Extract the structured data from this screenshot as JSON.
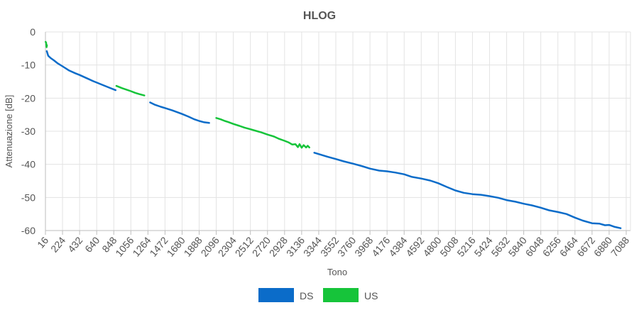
{
  "chart_data": {
    "type": "line",
    "title": "HLOG",
    "xlabel": "Tono",
    "ylabel": "Attenuazione [dB]",
    "xlim": [
      16,
      7140
    ],
    "ylim": [
      -60,
      0
    ],
    "grid": true,
    "legend_position": "bottom",
    "x_tick_labels": [
      "16",
      "224",
      "432",
      "640",
      "848",
      "1056",
      "1264",
      "1472",
      "1680",
      "1888",
      "2096",
      "2304",
      "2512",
      "2720",
      "2928",
      "3136",
      "3344",
      "3552",
      "3760",
      "3968",
      "4176",
      "4384",
      "4592",
      "4800",
      "5008",
      "5216",
      "5424",
      "5632",
      "5840",
      "6048",
      "6256",
      "6464",
      "6672",
      "6880",
      "7088"
    ],
    "y_tick_labels": [
      "0",
      "-10",
      "-20",
      "-30",
      "-40",
      "-50",
      "-60"
    ],
    "y_ticks": [
      0,
      -10,
      -20,
      -30,
      -40,
      -50,
      -60
    ],
    "series": [
      {
        "name": "DS",
        "color": "#0b6cc9",
        "segments": [
          [
            [
              32,
              -5.8
            ],
            [
              50,
              -7.2
            ],
            [
              80,
              -7.9
            ],
            [
              120,
              -8.6
            ],
            [
              160,
              -9.4
            ],
            [
              224,
              -10.4
            ],
            [
              300,
              -11.6
            ],
            [
              380,
              -12.5
            ],
            [
              432,
              -13.0
            ],
            [
              520,
              -14.0
            ],
            [
              600,
              -14.9
            ],
            [
              640,
              -15.3
            ],
            [
              720,
              -16.1
            ],
            [
              800,
              -16.9
            ],
            [
              870,
              -17.6
            ]
          ],
          [
            [
              1290,
              -21.3
            ],
            [
              1350,
              -22.0
            ],
            [
              1420,
              -22.6
            ],
            [
              1472,
              -23.0
            ],
            [
              1560,
              -23.7
            ],
            [
              1640,
              -24.4
            ],
            [
              1680,
              -24.8
            ],
            [
              1760,
              -25.6
            ],
            [
              1830,
              -26.4
            ],
            [
              1888,
              -26.9
            ],
            [
              1950,
              -27.3
            ],
            [
              2010,
              -27.5
            ]
          ],
          [
            [
              3290,
              -36.5
            ],
            [
              3344,
              -36.9
            ],
            [
              3450,
              -37.7
            ],
            [
              3552,
              -38.4
            ],
            [
              3650,
              -39.1
            ],
            [
              3760,
              -39.8
            ],
            [
              3880,
              -40.6
            ],
            [
              3968,
              -41.3
            ],
            [
              4080,
              -41.9
            ],
            [
              4176,
              -42.1
            ],
            [
              4280,
              -42.5
            ],
            [
              4384,
              -43.0
            ],
            [
              4480,
              -43.8
            ],
            [
              4592,
              -44.3
            ],
            [
              4700,
              -44.9
            ],
            [
              4800,
              -45.7
            ],
            [
              4900,
              -46.8
            ],
            [
              5008,
              -47.9
            ],
            [
              5110,
              -48.6
            ],
            [
              5216,
              -49.0
            ],
            [
              5320,
              -49.2
            ],
            [
              5424,
              -49.6
            ],
            [
              5530,
              -50.1
            ],
            [
              5632,
              -50.8
            ],
            [
              5740,
              -51.3
            ],
            [
              5840,
              -51.9
            ],
            [
              5940,
              -52.4
            ],
            [
              6048,
              -53.1
            ],
            [
              6150,
              -53.9
            ],
            [
              6256,
              -54.4
            ],
            [
              6360,
              -55.0
            ],
            [
              6464,
              -56.1
            ],
            [
              6560,
              -57.0
            ],
            [
              6672,
              -57.8
            ],
            [
              6760,
              -57.9
            ],
            [
              6830,
              -58.4
            ],
            [
              6880,
              -58.3
            ],
            [
              6950,
              -58.9
            ],
            [
              7020,
              -59.3
            ]
          ]
        ]
      },
      {
        "name": "US",
        "color": "#16c43a",
        "segments": [
          [
            [
              18,
              -3.0
            ],
            [
              24,
              -3.2
            ],
            [
              30,
              -4.6
            ],
            [
              34,
              -4.0
            ]
          ],
          [
            [
              880,
              -16.3
            ],
            [
              950,
              -17.0
            ],
            [
              1010,
              -17.5
            ],
            [
              1056,
              -17.9
            ],
            [
              1110,
              -18.4
            ],
            [
              1160,
              -18.8
            ],
            [
              1220,
              -19.2
            ]
          ],
          [
            [
              2096,
              -26.0
            ],
            [
              2150,
              -26.4
            ],
            [
              2200,
              -26.9
            ],
            [
              2240,
              -27.2
            ],
            [
              2304,
              -27.8
            ],
            [
              2380,
              -28.4
            ],
            [
              2440,
              -28.9
            ],
            [
              2512,
              -29.4
            ],
            [
              2580,
              -29.9
            ],
            [
              2640,
              -30.3
            ],
            [
              2720,
              -31.0
            ],
            [
              2800,
              -31.6
            ],
            [
              2860,
              -32.3
            ],
            [
              2928,
              -32.9
            ],
            [
              2980,
              -33.4
            ],
            [
              3020,
              -34.0
            ],
            [
              3060,
              -33.9
            ],
            [
              3090,
              -34.8
            ],
            [
              3110,
              -33.9
            ],
            [
              3136,
              -35.0
            ],
            [
              3160,
              -34.2
            ],
            [
              3190,
              -34.9
            ],
            [
              3210,
              -34.4
            ],
            [
              3230,
              -34.9
            ]
          ]
        ]
      }
    ]
  }
}
